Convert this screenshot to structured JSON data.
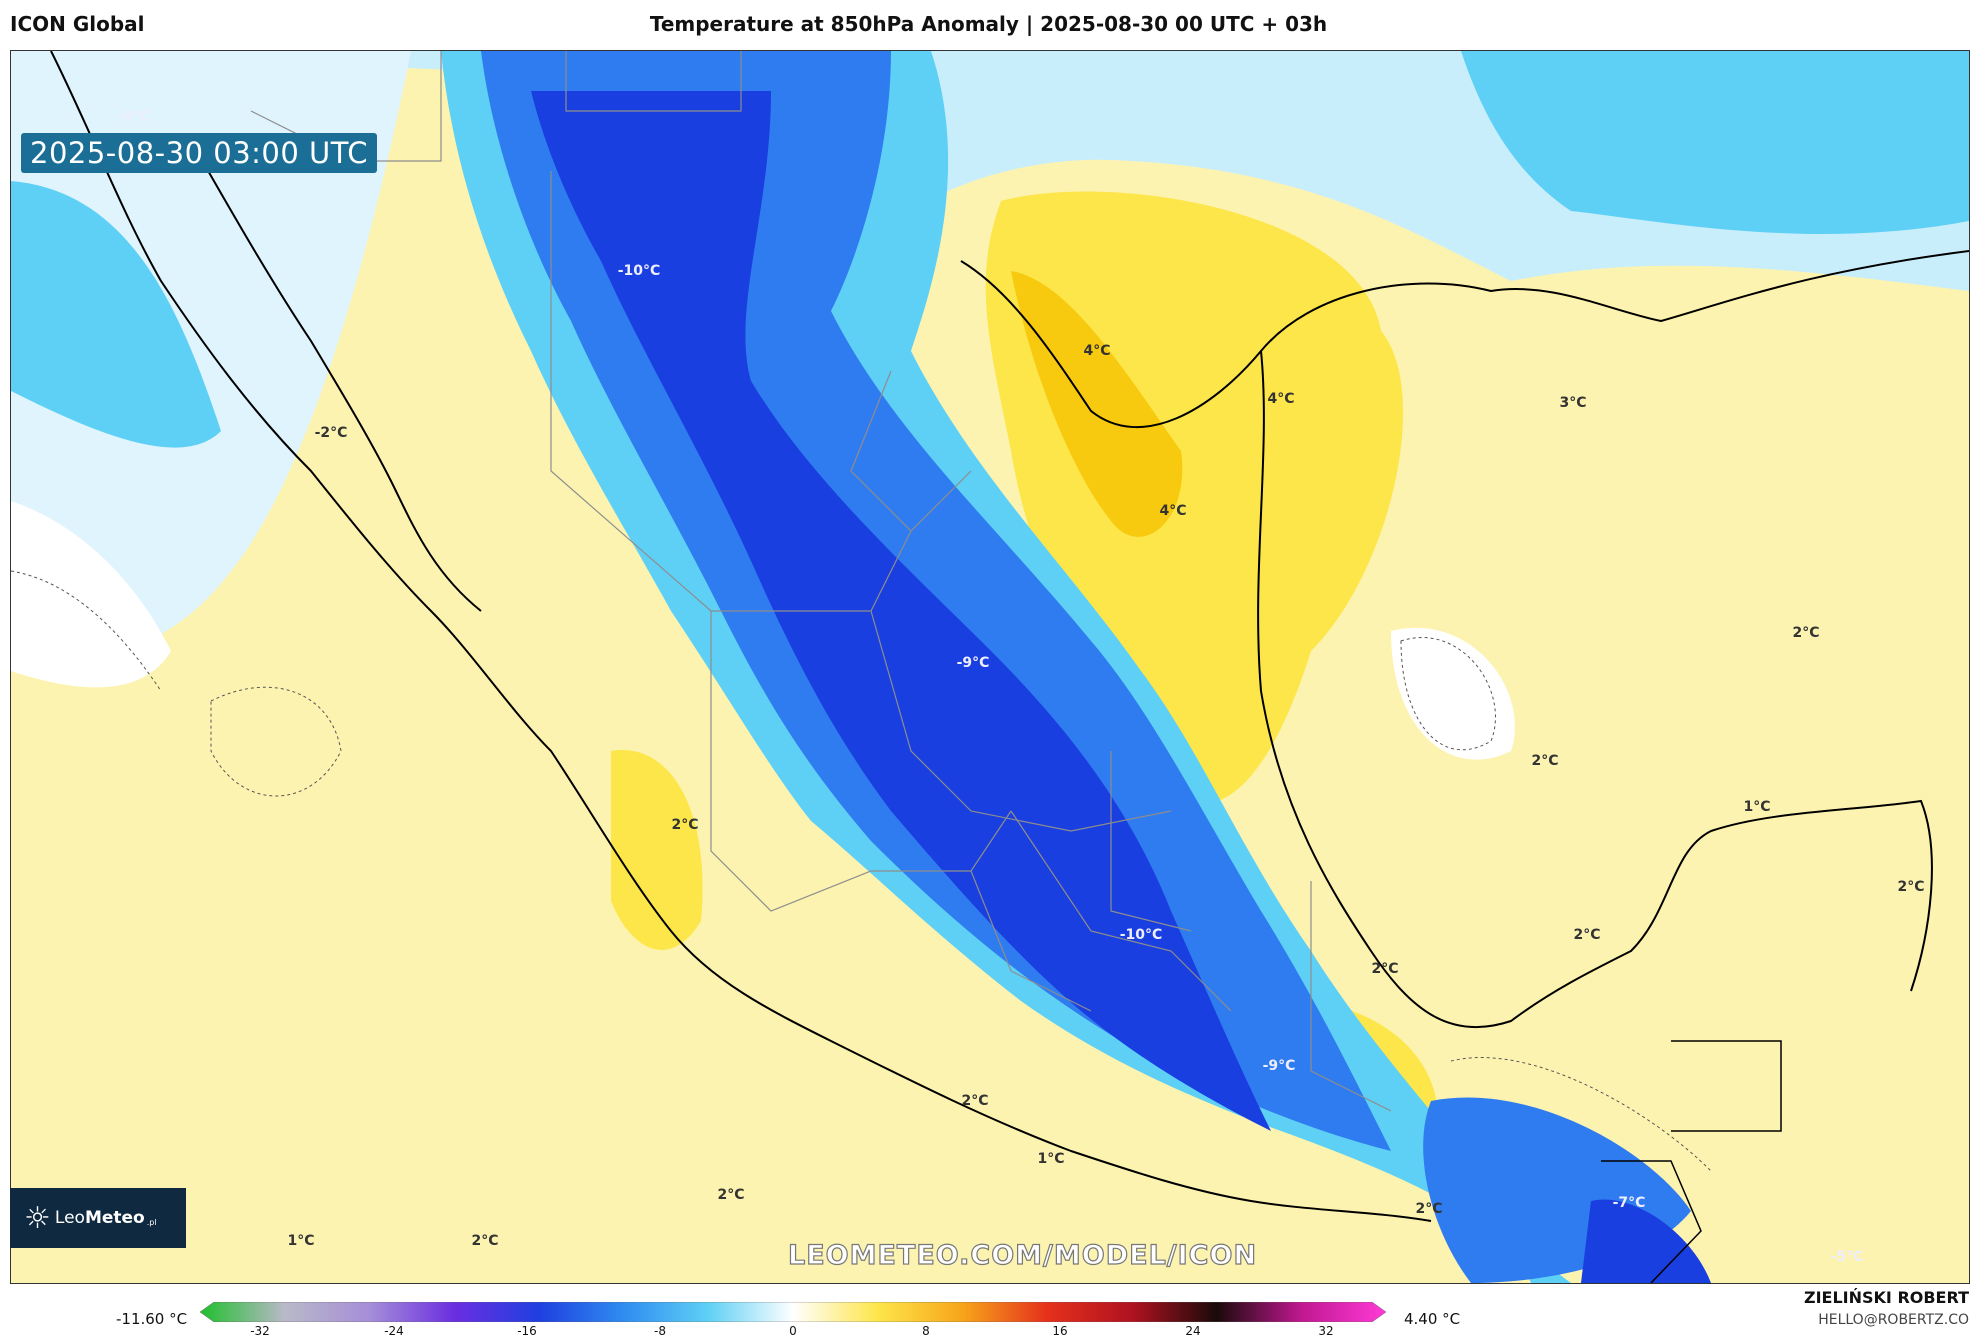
{
  "header": {
    "model": "ICON Global",
    "title": "Temperature at 850hPa Anomaly | 2025-08-30 00 UTC + 03h"
  },
  "map": {
    "timestamp": "2025-08-30 03:00 UTC",
    "watermark": "LEOMETEO.COM/MODEL/ICON",
    "contour_labels": [
      "-9°C",
      "-10°C",
      "-2°C",
      "4°C",
      "4°C",
      "4°C",
      "3°C",
      "2°C",
      "-9°C",
      "2°C",
      "2°C",
      "1°C",
      "2°C",
      "-10°C",
      "2°C",
      "2°C",
      "-9°C",
      "2°C",
      "1°C",
      "2°C",
      "2°C",
      "1°C",
      "2°C",
      "-7°C",
      "-5°C"
    ],
    "colors": {
      "deep_blue": "#1a3fe0",
      "mid_blue": "#2f7cf0",
      "light_blue": "#4cc8f5",
      "pale_blue": "#c9eefb",
      "yellow_pale": "#fdf3b0",
      "yellow": "#fde64a",
      "orange": "#f7c90f"
    }
  },
  "logo": {
    "brand_light": "Leo",
    "brand_bold": "Meteo",
    "suffix": ".pl",
    "icon": "sun-icon"
  },
  "colorbar": {
    "min_label": "-11.60 °C",
    "max_label": "4.40 °C",
    "ticks": [
      "-32",
      "-24",
      "-16",
      "-8",
      "0",
      "8",
      "16",
      "24",
      "32"
    ],
    "colors": [
      "#1fbf2b",
      "#b9b9c8",
      "#a58ed8",
      "#6b2ee0",
      "#1f3fe0",
      "#2f8cf0",
      "#5fd0f5",
      "#ffffff",
      "#fde64a",
      "#f7a51a",
      "#e5301c",
      "#b01220",
      "#1a0a0a",
      "#c01890",
      "#ff3ad8"
    ]
  },
  "credit": {
    "author": "ZIELIŃSKI ROBERT",
    "email": "HELLO@ROBERTZ.CO"
  }
}
